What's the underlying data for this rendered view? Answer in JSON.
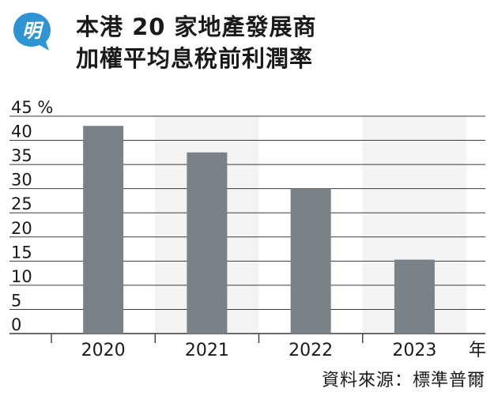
{
  "logo_char": "明",
  "title_lines": [
    "本港 20 家地產發展商",
    "加權平均息稅前利潤率"
  ],
  "source": "資料來源：標準普爾",
  "colors": {
    "bar": "#7a8287",
    "band": "#f3f3f3",
    "grid": "#3a3a3a",
    "logo": "#2f94d4"
  },
  "chart_data": {
    "type": "bar",
    "title": "本港 20 家地產發展商 加權平均息稅前利潤率",
    "categories": [
      "2020",
      "2021",
      "2022",
      "2023"
    ],
    "values": [
      43,
      37.5,
      30,
      15.3
    ],
    "ylim": [
      0,
      45
    ],
    "yticks": [
      {
        "value": 45,
        "label": "45 %"
      },
      {
        "value": 40,
        "label": "40"
      },
      {
        "value": 35,
        "label": "35"
      },
      {
        "value": 30,
        "label": "30"
      },
      {
        "value": 25,
        "label": "25"
      },
      {
        "value": 20,
        "label": "20"
      },
      {
        "value": 15,
        "label": "15"
      },
      {
        "value": 10,
        "label": "10"
      },
      {
        "value": 5,
        "label": "5"
      },
      {
        "value": 0,
        "label": "0"
      }
    ],
    "xunit": "年",
    "grid": true
  }
}
